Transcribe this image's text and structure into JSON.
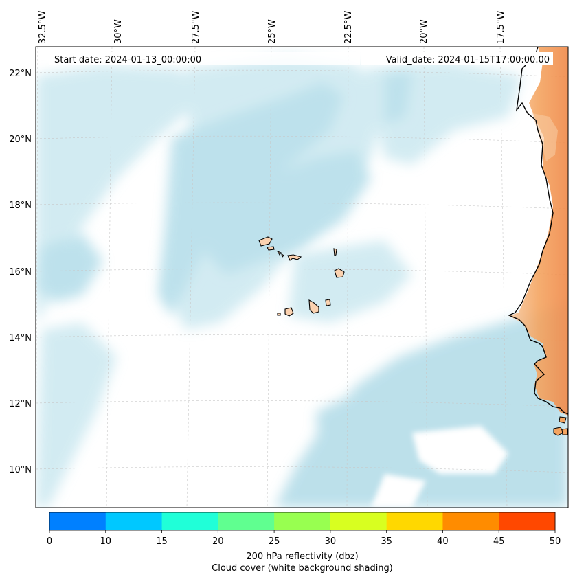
{
  "map": {
    "start_date": "Start date: 2024-01-13_00:00:00",
    "valid_date": "Valid_date: 2024-01-15T17:00:00.00",
    "lon_labels": [
      "32.5°W",
      "30°W",
      "27.5°W",
      "25°W",
      "22.5°W",
      "20°W",
      "17.5°W"
    ],
    "lat_labels": [
      "22°N",
      "20°N",
      "18°N",
      "16°N",
      "14°N",
      "12°N",
      "10°N"
    ],
    "gridlines": true,
    "extent": {
      "lon": [
        -33,
        -15.4
      ],
      "lat": [
        9,
        22.7
      ]
    }
  },
  "colorbar": {
    "ticks": [
      "0",
      "10",
      "15",
      "20",
      "25",
      "30",
      "35",
      "40",
      "45",
      "50"
    ],
    "colors": [
      "#0080ff",
      "#00c8ff",
      "#20ffd8",
      "#60ff90",
      "#98ff50",
      "#d8ff20",
      "#ffd800",
      "#ff8c00",
      "#ff4800"
    ],
    "label": "200 hPa reflectivity (dbz)",
    "sublabel": "Cloud cover (white background shading)"
  },
  "colors": {
    "cloud": "#a8d8e6",
    "land": "#f4a460",
    "island": "#fbd2b0"
  }
}
